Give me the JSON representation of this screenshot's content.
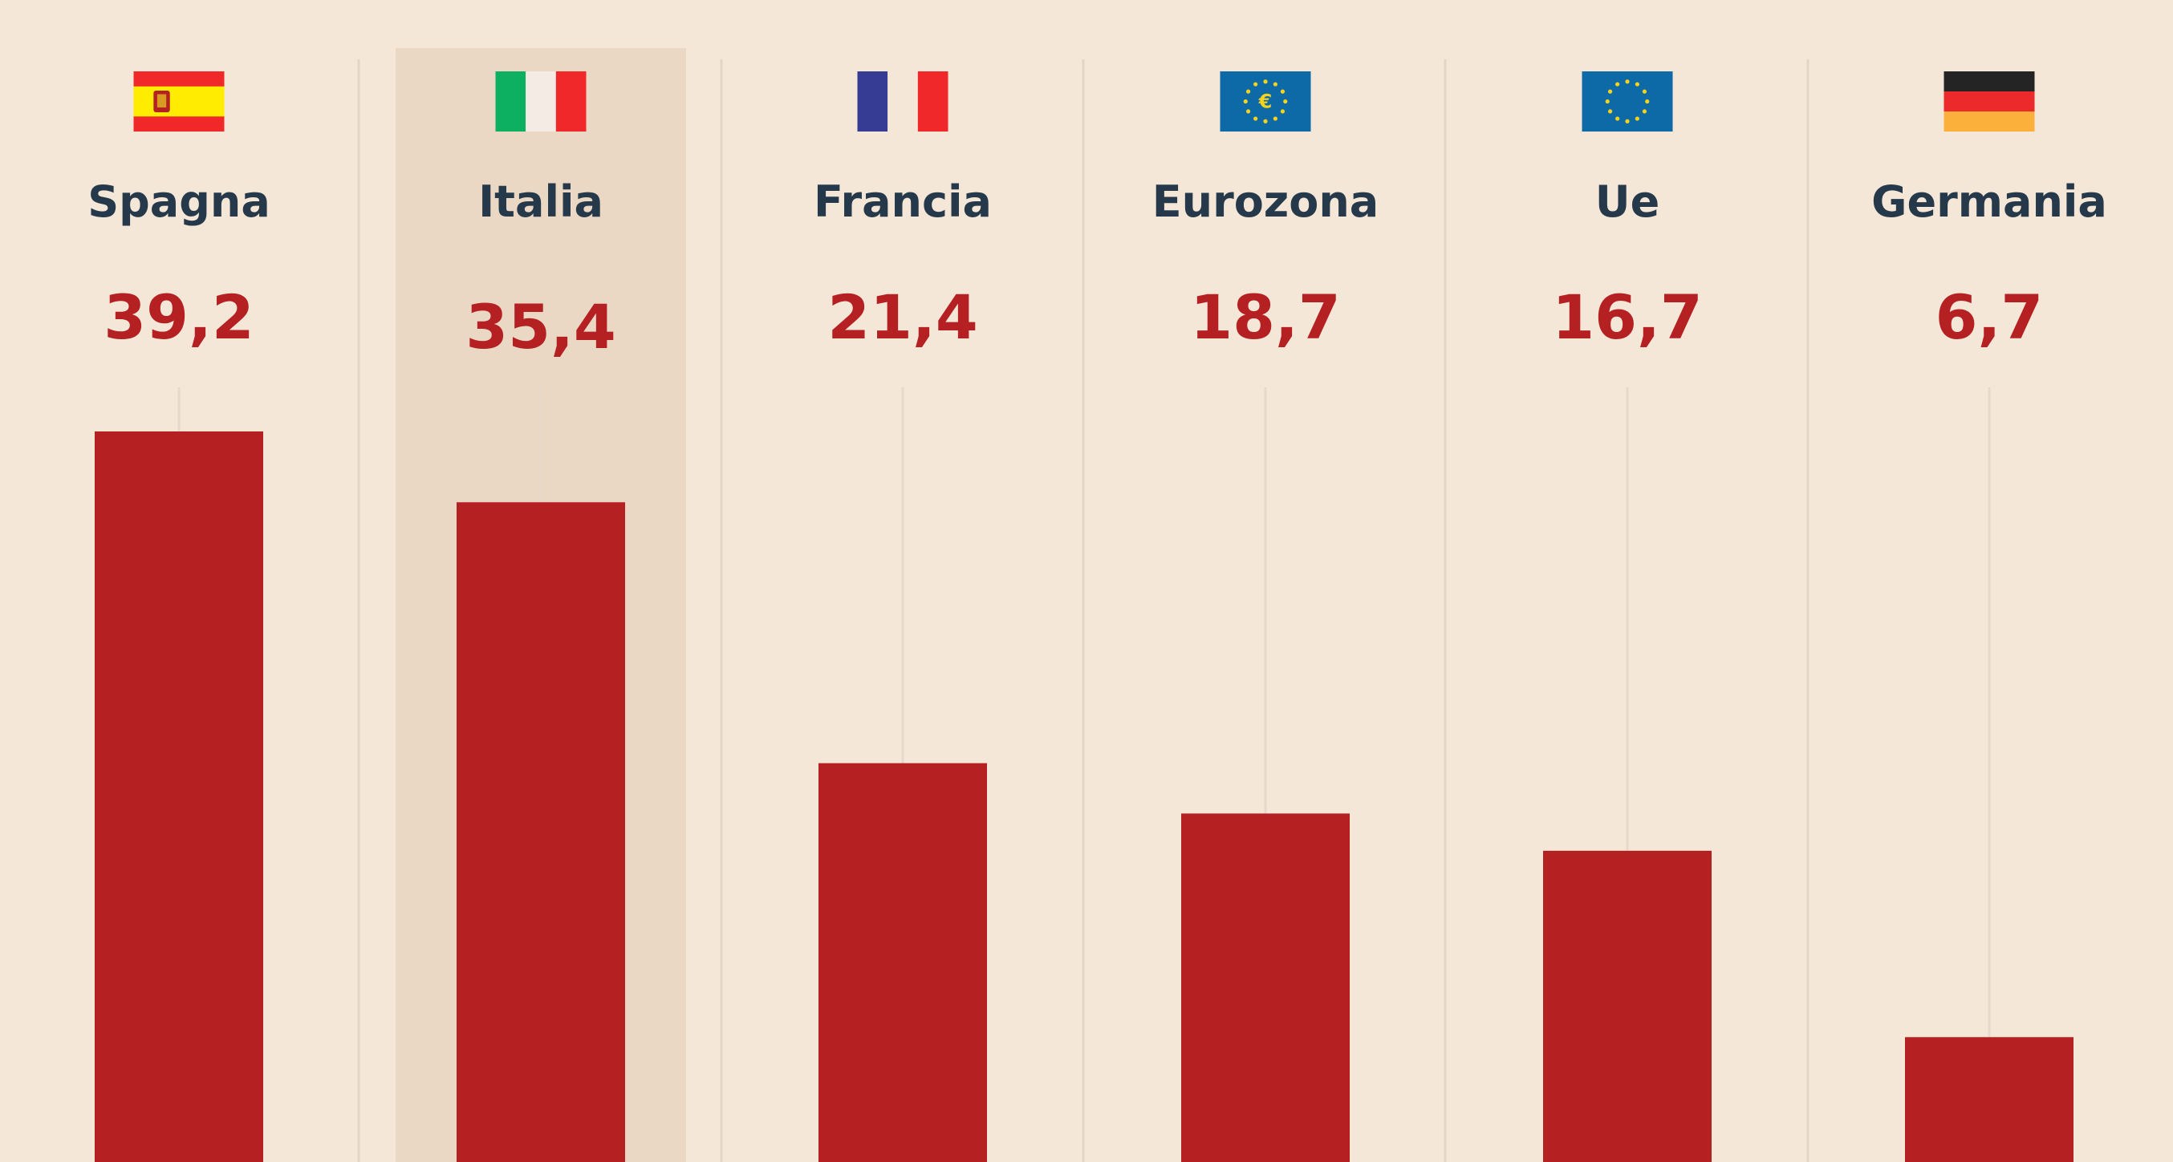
{
  "chart_data": {
    "type": "bar",
    "categories": [
      "Spagna",
      "Italia",
      "Francia",
      "Eurozona",
      "Ue",
      "Germania"
    ],
    "values": [
      39.2,
      35.4,
      21.4,
      18.7,
      16.7,
      6.7
    ],
    "value_labels": [
      "39,2",
      "35,4",
      "21,4",
      "18,7",
      "16,7",
      "6,7"
    ],
    "flags": [
      "spain-flag",
      "italy-flag",
      "france-flag",
      "eurozone-flag",
      "eu-flag",
      "germany-flag"
    ],
    "highlighted": "Italia",
    "title": "",
    "xlabel": "",
    "ylabel": "",
    "ylim": [
      0,
      45
    ],
    "grid": false
  },
  "colors": {
    "background": "#f5e7d8",
    "highlight_band": "#ead7c4",
    "bar": "#b52022",
    "value_text": "#b52022",
    "label_text": "#25394a",
    "divider": "#e2d5c8",
    "stem": "#e6d9cc"
  }
}
